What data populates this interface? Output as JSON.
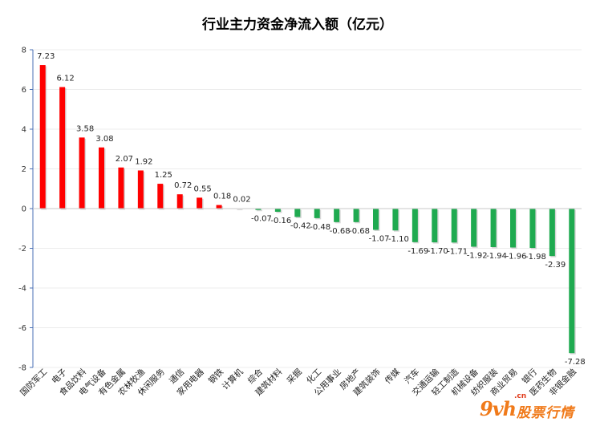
{
  "chart_data": {
    "type": "bar",
    "title": "行业主力资金净流入额（亿元）",
    "xlabel": "",
    "ylabel": "",
    "ylim": [
      -8,
      8
    ],
    "yticks": [
      -8,
      -6,
      -4,
      -2,
      0,
      2,
      4,
      6,
      8
    ],
    "grid": true,
    "legend": "none",
    "colors": {
      "positive": "#ff0000",
      "negative": "#1faa50"
    },
    "categories": [
      "国防军工",
      "电子",
      "食品饮料",
      "电气设备",
      "有色金属",
      "农林牧渔",
      "休闲服务",
      "通信",
      "家用电器",
      "钢铁",
      "计算机",
      "综合",
      "建筑材料",
      "采掘",
      "化工",
      "公用事业",
      "房地产",
      "建筑装饰",
      "传媒",
      "汽车",
      "交通运输",
      "轻工制造",
      "机械设备",
      "纺织服装",
      "商业贸易",
      "银行",
      "医药生物",
      "非银金融"
    ],
    "values": [
      7.23,
      6.12,
      3.58,
      3.08,
      2.07,
      1.92,
      1.25,
      0.72,
      0.55,
      0.18,
      0.02,
      -0.07,
      -0.16,
      -0.42,
      -0.48,
      -0.68,
      -0.68,
      -1.07,
      -1.1,
      -1.69,
      -1.7,
      -1.71,
      -1.92,
      -1.94,
      -1.96,
      -1.98,
      -2.39,
      -7.28
    ],
    "data_labels": [
      "7.23",
      "6.12",
      "3.58",
      "3.08",
      "2.07",
      "1.92",
      "1.25",
      "0.72",
      "0.55",
      "0.18",
      "0.02",
      "-0.07",
      "-0.16",
      "-0.42",
      "-0.48",
      "-0.68",
      "-0.68",
      "-1.07",
      "-1.10",
      "-1.69",
      "-1.70",
      "-1.71",
      "-1.92",
      "-1.94",
      "-1.96",
      "-1.98",
      "-2.39",
      "-7.28"
    ]
  },
  "watermark": {
    "logo": "9vh",
    "text": "股票行情",
    "domain": ".cn"
  }
}
